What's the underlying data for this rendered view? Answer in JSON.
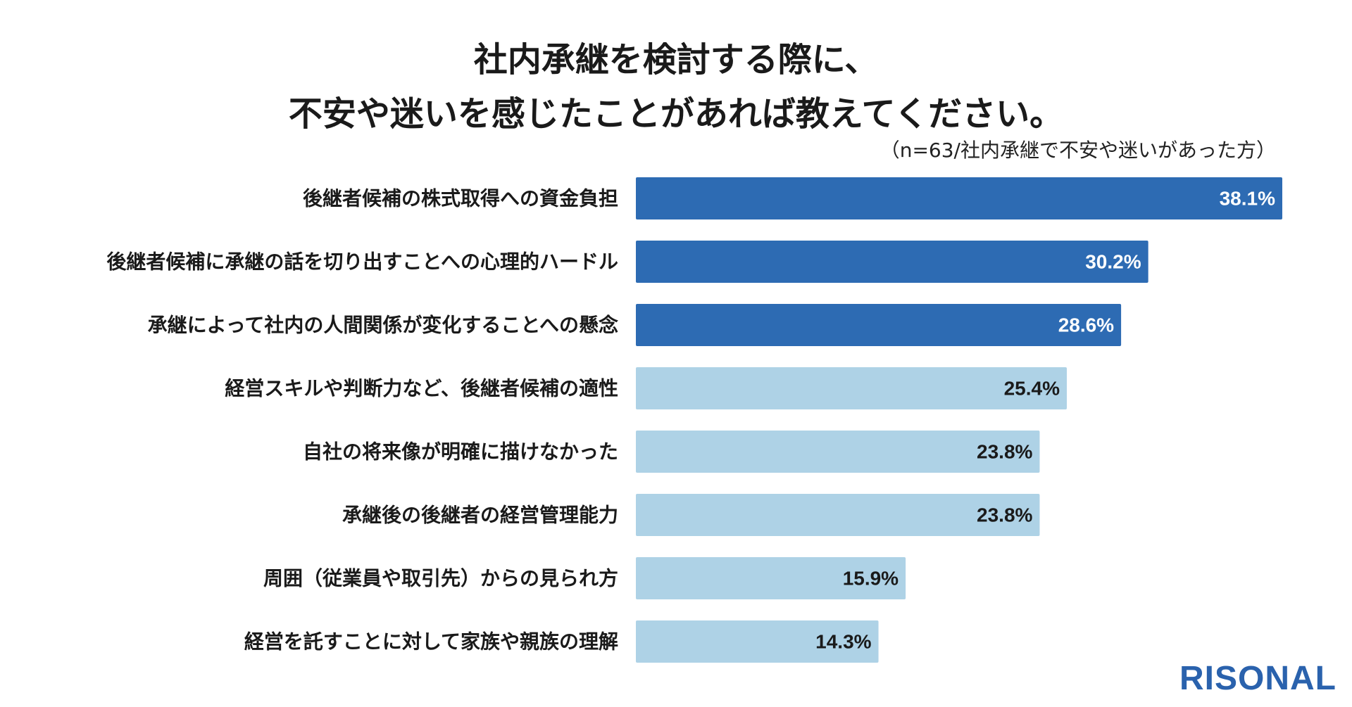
{
  "title_lines": [
    "社内承継を検討する際に、",
    "不安や迷いを感じたことがあれば教えてください。"
  ],
  "note": "（n=63/社内承継で不安や迷いがあった方）",
  "logo": "RISONAL",
  "colors": {
    "highlight": "#2d6bb3",
    "normal": "#aed2e6",
    "label_on_dark": "#ffffff",
    "label_on_light": "#1a1a1a",
    "category_text": "#1a1a1a",
    "logo": "#2a62ad"
  },
  "chart_data": {
    "type": "bar",
    "orientation": "horizontal",
    "title": "社内承継を検討する際に、不安や迷いを感じたことがあれば教えてください。",
    "xlabel": "",
    "ylabel": "",
    "xlim": [
      0,
      38.1
    ],
    "grid": false,
    "legend": "none",
    "value_suffix": "%",
    "highlighted_top": 3,
    "categories": [
      "後継者候補の株式取得への資金負担",
      "後継者候補に承継の話を切り出すことへの心理的ハードル",
      "承継によって社内の人間関係が変化することへの懸念",
      "経営スキルや判断力など、後継者候補の適性",
      "自社の将来像が明確に描けなかった",
      "承継後の後継者の経営管理能力",
      "周囲（従業員や取引先）からの見られ方",
      "経営を託すことに対して家族や親族の理解"
    ],
    "values": [
      38.1,
      30.2,
      28.6,
      25.4,
      23.8,
      23.8,
      15.9,
      14.3
    ],
    "data_labels": [
      "38.1%",
      "30.2%",
      "28.6%",
      "25.4%",
      "23.8%",
      "23.8%",
      "15.9%",
      "14.3%"
    ]
  }
}
